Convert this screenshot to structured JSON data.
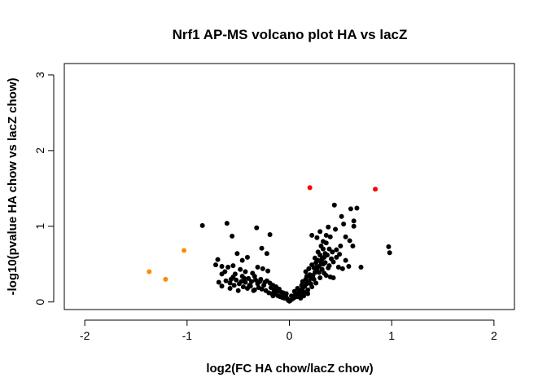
{
  "chart_data": {
    "type": "scatter",
    "title": "Nrf1 AP-MS volcano plot HA vs lacZ",
    "xlabel": "log2(FC HA chow/lacZ chow)",
    "ylabel": "-log10(pvalue HA chow vs lacZ chow)",
    "xlim": [
      -2.2,
      2.2
    ],
    "ylim": [
      -0.1,
      3.15
    ],
    "xticks": [
      "-2",
      "-1",
      "0",
      "1",
      "2"
    ],
    "yticks": [
      "0",
      "1",
      "2",
      "3"
    ],
    "grid": false,
    "colors": {
      "default": "#000000",
      "significant": "#ff0000",
      "depleted": "#ff8c00"
    },
    "series": [
      {
        "color": "#000000",
        "points": [
          [
            -0.85,
            1.01
          ],
          [
            -0.61,
            1.04
          ],
          [
            -0.56,
            0.87
          ],
          [
            -0.32,
            0.98
          ],
          [
            -0.19,
            0.89
          ],
          [
            -0.27,
            0.71
          ],
          [
            -0.22,
            0.64
          ],
          [
            -0.7,
            0.56
          ],
          [
            -0.72,
            0.49
          ],
          [
            -0.66,
            0.47
          ],
          [
            -0.6,
            0.46
          ],
          [
            -0.51,
            0.64
          ],
          [
            -0.46,
            0.55
          ],
          [
            -0.41,
            0.59
          ],
          [
            -0.55,
            0.48
          ],
          [
            -0.48,
            0.43
          ],
          [
            -0.43,
            0.4
          ],
          [
            -0.36,
            0.38
          ],
          [
            -0.31,
            0.46
          ],
          [
            -0.26,
            0.44
          ],
          [
            -0.21,
            0.41
          ],
          [
            -0.66,
            0.37
          ],
          [
            -0.69,
            0.26
          ],
          [
            -0.66,
            0.21
          ],
          [
            -0.62,
            0.28
          ],
          [
            -0.58,
            0.25
          ],
          [
            -0.55,
            0.33
          ],
          [
            -0.52,
            0.29
          ],
          [
            -0.49,
            0.24
          ],
          [
            -0.46,
            0.34
          ],
          [
            -0.43,
            0.26
          ],
          [
            -0.4,
            0.31
          ],
          [
            -0.37,
            0.27
          ],
          [
            -0.34,
            0.34
          ],
          [
            -0.31,
            0.24
          ],
          [
            -0.28,
            0.3
          ],
          [
            -0.25,
            0.22
          ],
          [
            -0.22,
            0.28
          ],
          [
            -0.19,
            0.25
          ],
          [
            -0.16,
            0.22
          ],
          [
            -0.13,
            0.2
          ],
          [
            -0.1,
            0.17
          ],
          [
            -0.08,
            0.13
          ],
          [
            -0.06,
            0.12
          ],
          [
            -0.04,
            0.09
          ],
          [
            -0.03,
            0.06
          ],
          [
            -0.02,
            0.04
          ],
          [
            -0.01,
            0.02
          ],
          [
            0.0,
            0.01
          ],
          [
            0.01,
            0.02
          ],
          [
            -0.58,
            0.18
          ],
          [
            -0.54,
            0.22
          ],
          [
            -0.5,
            0.15
          ],
          [
            -0.45,
            0.2
          ],
          [
            -0.41,
            0.18
          ],
          [
            -0.38,
            0.21
          ],
          [
            -0.34,
            0.16
          ],
          [
            -0.3,
            0.19
          ],
          [
            -0.27,
            0.17
          ],
          [
            -0.23,
            0.15
          ],
          [
            -0.2,
            0.12
          ],
          [
            -0.17,
            0.11
          ],
          [
            -0.14,
            0.1
          ],
          [
            -0.11,
            0.08
          ],
          [
            -0.09,
            0.07
          ],
          [
            -0.07,
            0.06
          ],
          [
            -0.12,
            0.14
          ],
          [
            -0.15,
            0.16
          ],
          [
            -0.18,
            0.19
          ],
          [
            -0.24,
            0.26
          ],
          [
            -0.29,
            0.27
          ],
          [
            -0.33,
            0.29
          ],
          [
            -0.39,
            0.22
          ],
          [
            -0.44,
            0.31
          ],
          [
            -0.47,
            0.27
          ],
          [
            -0.53,
            0.37
          ],
          [
            -0.57,
            0.3
          ],
          [
            -0.63,
            0.4
          ],
          [
            -0.35,
            0.15
          ],
          [
            -0.16,
            0.08
          ],
          [
            -0.05,
            0.05
          ],
          [
            0.03,
            0.04
          ],
          [
            0.05,
            0.06
          ],
          [
            0.07,
            0.09
          ],
          [
            0.09,
            0.12
          ],
          [
            0.11,
            0.15
          ],
          [
            0.13,
            0.18
          ],
          [
            0.15,
            0.21
          ],
          [
            0.17,
            0.24
          ],
          [
            0.19,
            0.27
          ],
          [
            0.21,
            0.31
          ],
          [
            0.23,
            0.35
          ],
          [
            0.25,
            0.39
          ],
          [
            0.27,
            0.43
          ],
          [
            0.29,
            0.47
          ],
          [
            0.31,
            0.52
          ],
          [
            0.08,
            0.18
          ],
          [
            0.12,
            0.22
          ],
          [
            0.16,
            0.3
          ],
          [
            0.2,
            0.36
          ],
          [
            0.24,
            0.45
          ],
          [
            0.28,
            0.55
          ],
          [
            0.3,
            0.62
          ],
          [
            0.33,
            0.7
          ],
          [
            0.36,
            0.78
          ],
          [
            0.4,
            0.86
          ],
          [
            0.45,
            0.96
          ],
          [
            0.05,
            0.14
          ],
          [
            0.1,
            0.1
          ],
          [
            0.14,
            0.13
          ],
          [
            0.18,
            0.16
          ],
          [
            0.22,
            0.2
          ],
          [
            0.26,
            0.25
          ],
          [
            0.3,
            0.32
          ],
          [
            0.34,
            0.38
          ],
          [
            0.38,
            0.45
          ],
          [
            0.16,
            0.4
          ],
          [
            0.19,
            0.44
          ],
          [
            0.22,
            0.49
          ],
          [
            0.25,
            0.58
          ],
          [
            0.28,
            0.66
          ],
          [
            0.31,
            0.74
          ],
          [
            0.22,
            0.88
          ],
          [
            0.27,
            0.85
          ],
          [
            0.3,
            0.93
          ],
          [
            0.33,
            0.8
          ],
          [
            0.37,
            0.62
          ],
          [
            0.41,
            0.57
          ],
          [
            0.46,
            0.69
          ],
          [
            0.5,
            0.74
          ],
          [
            0.35,
            0.52
          ],
          [
            0.39,
            0.48
          ],
          [
            0.43,
            0.53
          ],
          [
            0.34,
            0.59
          ],
          [
            0.44,
            1.28
          ],
          [
            0.51,
            1.13
          ],
          [
            0.53,
            1.03
          ],
          [
            0.38,
            0.99
          ],
          [
            0.36,
            0.88
          ],
          [
            0.55,
            0.86
          ],
          [
            0.59,
            0.81
          ],
          [
            0.48,
            0.46
          ],
          [
            0.52,
            0.44
          ],
          [
            0.4,
            0.33
          ],
          [
            0.43,
            0.32
          ],
          [
            0.58,
            0.47
          ],
          [
            0.62,
            0.74
          ],
          [
            0.6,
            1.23
          ],
          [
            0.66,
            1.24
          ],
          [
            0.63,
            1.07
          ],
          [
            0.63,
            1.0
          ],
          [
            0.7,
            0.46
          ],
          [
            0.97,
            0.73
          ],
          [
            0.98,
            0.65
          ],
          [
            0.11,
            0.05
          ],
          [
            0.14,
            0.08
          ],
          [
            0.18,
            0.11
          ],
          [
            0.06,
            0.1
          ],
          [
            0.08,
            0.07
          ],
          [
            0.02,
            0.08
          ],
          [
            -0.03,
            0.11
          ],
          [
            0.13,
            0.27
          ],
          [
            0.17,
            0.34
          ],
          [
            0.24,
            0.3
          ],
          [
            0.29,
            0.39
          ],
          [
            0.32,
            0.43
          ],
          [
            0.36,
            0.35
          ],
          [
            0.21,
            0.24
          ],
          [
            0.26,
            0.46
          ],
          [
            0.33,
            0.5
          ],
          [
            0.35,
            0.64
          ],
          [
            0.39,
            0.7
          ],
          [
            0.42,
            0.66
          ],
          [
            0.46,
            0.59
          ],
          [
            0.49,
            0.63
          ],
          [
            0.55,
            0.55
          ],
          [
            0.32,
            0.57
          ],
          [
            0.26,
            0.52
          ]
        ]
      },
      {
        "color": "#ff0000",
        "points": [
          [
            0.2,
            1.51
          ],
          [
            0.84,
            1.49
          ]
        ]
      },
      {
        "color": "#ff8c00",
        "points": [
          [
            -1.37,
            0.4
          ],
          [
            -1.21,
            0.3
          ],
          [
            -1.03,
            0.68
          ]
        ]
      }
    ]
  }
}
